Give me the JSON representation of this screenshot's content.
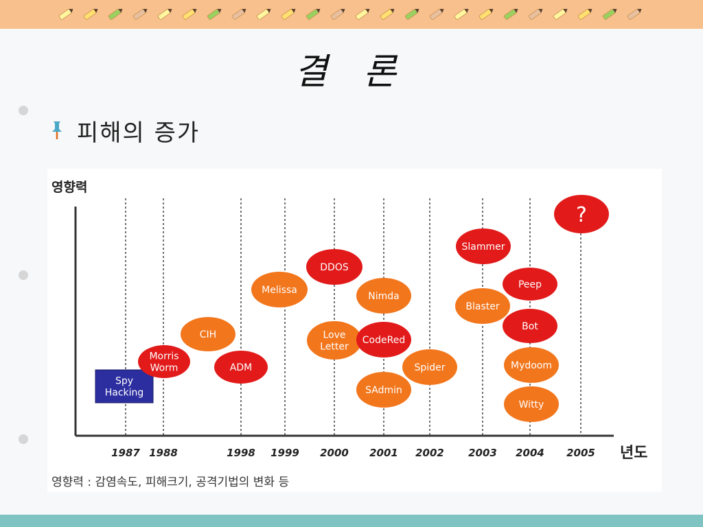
{
  "slide": {
    "title": "결 론",
    "subtitle": "피해의 증가"
  },
  "chart": {
    "y_axis_label": "영향력",
    "x_axis_label": "년도",
    "footnote": "영향력 : 감염속도, 피해크기, 공격기법의 변화 등",
    "years": [
      "1987",
      "1988",
      "1998",
      "1999",
      "2000",
      "2001",
      "2002",
      "2003",
      "2004",
      "2005"
    ],
    "nodes": [
      {
        "label": "Spy\nHacking",
        "shape": "rect"
      },
      {
        "label": "Morris\nWorm",
        "shape": "ellipse"
      },
      {
        "label": "CIH",
        "shape": "ellipse"
      },
      {
        "label": "ADM",
        "shape": "ellipse"
      },
      {
        "label": "Melissa",
        "shape": "ellipse"
      },
      {
        "label": "DDOS",
        "shape": "ellipse"
      },
      {
        "label": "Love\nLetter",
        "shape": "ellipse"
      },
      {
        "label": "Nimda",
        "shape": "ellipse"
      },
      {
        "label": "CodeRed",
        "shape": "ellipse"
      },
      {
        "label": "SAdmin",
        "shape": "ellipse"
      },
      {
        "label": "Spider",
        "shape": "ellipse"
      },
      {
        "label": "Slammer",
        "shape": "ellipse"
      },
      {
        "label": "Blaster",
        "shape": "ellipse"
      },
      {
        "label": "Peep",
        "shape": "ellipse"
      },
      {
        "label": "Bot",
        "shape": "ellipse"
      },
      {
        "label": "Mydoom",
        "shape": "ellipse"
      },
      {
        "label": "Witty",
        "shape": "ellipse"
      },
      {
        "label": "?",
        "shape": "ellipse"
      }
    ]
  },
  "colors": {
    "top_band": "#f7c08c",
    "bottom_band": "#7fc3c3",
    "red": "#e21a1a",
    "orange": "#f2761c",
    "blue_box": "#2c2ea0",
    "pin": "#4aa8c8"
  }
}
